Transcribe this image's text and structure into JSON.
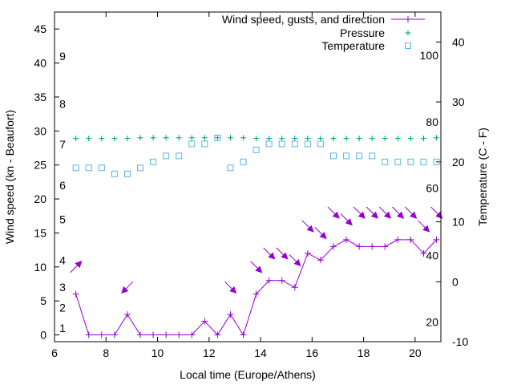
{
  "chart_data": {
    "type": "line",
    "title": "",
    "xlabel": "Local time (Europe/Athens)",
    "ylabel": "Wind speed (kn - Beaufort)",
    "y2label": "Temperature (C - F)",
    "xlim": [
      6,
      21
    ],
    "ylim": [
      -1,
      47.5
    ],
    "y2lim": [
      -10,
      45
    ],
    "xticks": [
      "6",
      "8",
      "10",
      "12",
      "14",
      "16",
      "18",
      "20"
    ],
    "xtick_values": [
      6,
      8,
      10,
      12,
      14,
      16,
      18,
      20
    ],
    "yticks": [
      "0",
      "5",
      "10",
      "15",
      "20",
      "25",
      "30",
      "35",
      "40",
      "45"
    ],
    "ytick_values": [
      0,
      5,
      10,
      15,
      20,
      25,
      30,
      35,
      40,
      45
    ],
    "y2ticks": [
      "-10",
      "0",
      "10",
      "20",
      "30",
      "40"
    ],
    "y2tick_values": [
      -10,
      0,
      10,
      20,
      30,
      40
    ],
    "beaufort_labels": [
      {
        "text": "1",
        "kn": 1
      },
      {
        "text": "2",
        "kn": 4
      },
      {
        "text": "3",
        "kn": 7
      },
      {
        "text": "4",
        "kn": 11
      },
      {
        "text": "5",
        "kn": 17
      },
      {
        "text": "6",
        "kn": 22
      },
      {
        "text": "7",
        "kn": 28
      },
      {
        "text": "8",
        "kn": 34
      },
      {
        "text": "9",
        "kn": 41
      }
    ],
    "fahrenheit_labels": [
      {
        "text": "20",
        "c": -6.7
      },
      {
        "text": "40",
        "c": 4.4
      },
      {
        "text": "60",
        "c": 15.6
      },
      {
        "text": "80",
        "c": 26.7
      },
      {
        "text": "100",
        "c": 37.8
      }
    ],
    "legend": [
      {
        "label": "Wind speed, gusts, and direction",
        "color": "#9400d3",
        "marker": "line-plus"
      },
      {
        "label": "Pressure",
        "color": "#009e73",
        "marker": "plus"
      },
      {
        "label": "Temperature",
        "color": "#56b4e9",
        "marker": "square"
      }
    ],
    "legend_position": "top-right",
    "series": [
      {
        "name": "Wind speed",
        "axis": "y",
        "color": "#9400d3",
        "x": [
          6.83,
          7.33,
          7.83,
          8.33,
          8.83,
          9.33,
          9.83,
          10.33,
          10.83,
          11.33,
          11.83,
          12.33,
          12.83,
          13.33,
          13.83,
          14.33,
          14.83,
          15.33,
          15.83,
          16.33,
          16.83,
          17.33,
          17.83,
          18.33,
          18.83,
          19.33,
          19.83,
          20.33,
          20.83
        ],
        "y": [
          6,
          0,
          0,
          0,
          3,
          0,
          0,
          0,
          0,
          0,
          2,
          0,
          3,
          0,
          6,
          8,
          8,
          7,
          12,
          11,
          13,
          14,
          13,
          13,
          13,
          14,
          14,
          12,
          14
        ]
      },
      {
        "name": "Wind direction",
        "axis": "y",
        "color": "#9400d3",
        "arrows": [
          {
            "x": 6.83,
            "y": 10,
            "direction": "up-right"
          },
          {
            "x": 8.83,
            "y": 7,
            "direction": "down-left"
          },
          {
            "x": 12.83,
            "y": 7,
            "direction": "down-right"
          },
          {
            "x": 13.83,
            "y": 10,
            "direction": "down-right"
          },
          {
            "x": 14.33,
            "y": 12,
            "direction": "down-right"
          },
          {
            "x": 14.83,
            "y": 12,
            "direction": "down-right"
          },
          {
            "x": 15.33,
            "y": 11,
            "direction": "down-right"
          },
          {
            "x": 15.83,
            "y": 16,
            "direction": "down-right"
          },
          {
            "x": 16.33,
            "y": 15,
            "direction": "down-right"
          },
          {
            "x": 16.83,
            "y": 18,
            "direction": "down-right"
          },
          {
            "x": 17.33,
            "y": 17,
            "direction": "down-right"
          },
          {
            "x": 17.83,
            "y": 18,
            "direction": "down-right"
          },
          {
            "x": 18.33,
            "y": 18,
            "direction": "down-right"
          },
          {
            "x": 18.83,
            "y": 18,
            "direction": "down-right"
          },
          {
            "x": 19.33,
            "y": 18,
            "direction": "down-right"
          },
          {
            "x": 19.83,
            "y": 18,
            "direction": "down-right"
          },
          {
            "x": 20.33,
            "y": 16,
            "direction": "down-right"
          },
          {
            "x": 20.83,
            "y": 18,
            "direction": "down-right"
          }
        ]
      },
      {
        "name": "Pressure",
        "axis": "y",
        "color": "#009e73",
        "x": [
          6.83,
          7.33,
          7.83,
          8.33,
          8.83,
          9.33,
          9.83,
          10.33,
          10.83,
          11.33,
          11.83,
          12.33,
          12.83,
          13.33,
          13.83,
          14.33,
          14.83,
          15.33,
          15.83,
          16.33,
          16.83,
          17.33,
          17.83,
          18.33,
          18.83,
          19.33,
          19.83,
          20.33,
          20.83
        ],
        "y": [
          28.9,
          28.9,
          28.9,
          28.9,
          28.9,
          29.0,
          29.0,
          29.0,
          29.0,
          29.0,
          29.0,
          29.0,
          29.0,
          29.0,
          28.9,
          28.9,
          28.9,
          28.9,
          28.9,
          28.9,
          28.9,
          28.9,
          28.9,
          28.9,
          28.9,
          28.9,
          28.9,
          28.9,
          29.0
        ]
      },
      {
        "name": "Temperature",
        "axis": "y2",
        "color": "#56b4e9",
        "x": [
          6.83,
          7.33,
          7.83,
          8.33,
          8.83,
          9.33,
          9.83,
          10.33,
          10.83,
          11.33,
          11.83,
          12.33,
          12.83,
          13.33,
          13.83,
          14.33,
          14.83,
          15.33,
          15.83,
          16.33,
          16.83,
          17.33,
          17.83,
          18.33,
          18.83,
          19.33,
          19.83,
          20.33,
          20.83
        ],
        "y": [
          19,
          19,
          19,
          18,
          18,
          19,
          20,
          21,
          21,
          23,
          23,
          24,
          19,
          20,
          22,
          23,
          23,
          23,
          23,
          23,
          21,
          21,
          21,
          21,
          20,
          20,
          20,
          20,
          20
        ]
      }
    ]
  }
}
